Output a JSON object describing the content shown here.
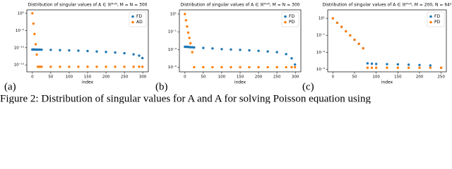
{
  "chart_data": [
    {
      "type": "scatter",
      "panel_label": "(a)",
      "title": "Distribution of singular values of A ∈ ℝᴹˣᴺ, M = N = 300",
      "x_label": "index",
      "log_y": true,
      "legend": "upper right",
      "x": [
        0,
        3,
        6,
        9,
        12,
        15,
        20,
        25,
        50,
        75,
        100,
        125,
        150,
        175,
        200,
        225,
        250,
        275,
        290,
        299
      ],
      "series": [
        {
          "name": "FD",
          "color": "#1f77b4",
          "values": [
            3e-11,
            3e-11,
            3e-11,
            2.9e-11,
            2.9e-11,
            2.8e-11,
            2.8e-11,
            2.7e-11,
            2.4e-11,
            2e-11,
            1.7e-11,
            1.4e-11,
            1.1e-11,
            8e-12,
            6e-12,
            4e-12,
            2.5e-12,
            1.2e-12,
            5e-13,
            1e-13
          ]
        },
        {
          "name": "AD",
          "color": "#ff7f0e",
          "values": [
            1,
            0.001,
            1e-06,
            1e-09,
            1e-12,
            3e-16,
            3e-16,
            3e-16,
            3e-16,
            3e-16,
            3e-16,
            3e-16,
            3e-16,
            3e-16,
            3e-16,
            3e-16,
            3e-16,
            3e-16,
            3e-16,
            3e-16
          ]
        }
      ],
      "xlim": [
        -15,
        315
      ],
      "xticks": [
        0,
        50,
        100,
        150,
        200,
        250,
        300
      ],
      "ylim": [
        1e-17,
        10
      ],
      "yticks": [
        {
          "value": 1,
          "label": "10⁰"
        },
        {
          "value": 1e-05,
          "label": "10⁻⁵"
        },
        {
          "value": 1e-10,
          "label": "10⁻¹⁰"
        },
        {
          "value": 1e-15,
          "label": "10⁻¹⁵"
        }
      ]
    },
    {
      "type": "scatter",
      "panel_label": "(b)",
      "title": "Distribution of singular values of A ∈ ℝᴹˣᴺ, M = N = 300",
      "x_label": "index",
      "log_y": true,
      "legend": "upper right",
      "x": [
        0,
        3,
        6,
        9,
        12,
        15,
        20,
        25,
        50,
        75,
        100,
        125,
        150,
        175,
        200,
        225,
        250,
        275,
        290,
        299
      ],
      "series": [
        {
          "name": "FD",
          "color": "#1f77b4",
          "values": [
            0.002,
            0.002,
            0.002,
            0.0019,
            0.0019,
            0.0018,
            0.0018,
            0.0017,
            0.0015,
            0.0013,
            0.0011,
            0.001,
            0.0009,
            0.0008,
            0.0007,
            0.0006,
            0.0005,
            0.0003,
            0.0001,
            2e-05
          ]
        },
        {
          "name": "PD",
          "color": "#ff7f0e",
          "values": [
            10,
            2,
            0.4,
            0.08,
            0.02,
            0.005,
            0.0005,
            1e-05,
            1e-05,
            1e-05,
            1e-05,
            1e-05,
            1e-05,
            1e-05,
            1e-05,
            1e-05,
            1e-05,
            1e-05,
            1e-05,
            1e-05
          ]
        }
      ],
      "xlim": [
        -15,
        315
      ],
      "xticks": [
        0,
        50,
        100,
        150,
        200,
        250,
        300
      ],
      "ylim": [
        3e-06,
        30
      ],
      "yticks": [
        {
          "value": 10,
          "label": "10¹"
        },
        {
          "value": 0.1,
          "label": "10⁻¹"
        },
        {
          "value": 0.001,
          "label": "10⁻³"
        },
        {
          "value": 1e-05,
          "label": "10⁻⁵"
        }
      ]
    },
    {
      "type": "scatter",
      "panel_label": "(c)",
      "title": "Distribution of singular values of A ∈ ℝᴹˣᴺ, M = 200, N = 64²",
      "x_label": "index",
      "log_y": true,
      "legend": "upper right",
      "x": [
        0,
        10,
        20,
        30,
        40,
        50,
        60,
        70,
        80,
        90,
        100,
        125,
        150,
        175,
        200,
        225,
        250
      ],
      "series": [
        {
          "name": "FD",
          "color": "#1f77b4",
          "values": [
            10,
            3,
            1,
            0.3,
            0.1,
            0.03,
            0.01,
            0.003,
            5e-05,
            4.5e-05,
            4.2e-05,
            4e-05,
            3.8e-05,
            3.5e-05,
            3.2e-05,
            2.8e-05,
            1.5e-05
          ]
        },
        {
          "name": "PD",
          "color": "#ff7f0e",
          "values": [
            10,
            3,
            1,
            0.3,
            0.1,
            0.03,
            0.01,
            0.003,
            1.5e-05,
            1.5e-05,
            1.5e-05,
            1.5e-05,
            1.5e-05,
            1.5e-05,
            1.5e-05,
            1.5e-05,
            1.5e-05
          ]
        }
      ],
      "xlim": [
        -12,
        262
      ],
      "xticks": [
        0,
        50,
        100,
        150,
        200,
        250
      ],
      "ylim": [
        5e-06,
        100
      ],
      "yticks": [
        {
          "value": 10,
          "label": "10¹"
        },
        {
          "value": 0.1,
          "label": "10⁻¹"
        },
        {
          "value": 0.001,
          "label": "10⁻³"
        },
        {
          "value": 1e-05,
          "label": "10⁻⁵"
        }
      ]
    }
  ],
  "caption": "Figure 2: Distribution of singular values for A and A for solving Poisson equation using"
}
